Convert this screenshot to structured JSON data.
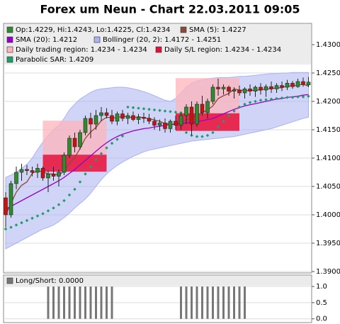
{
  "chart_data": {
    "type": "candlestick",
    "title": "Forex um Neun - Chart 22.03.2011 09:05",
    "ylim": [
      1.38975,
      1.43375
    ],
    "yticks": [
      {
        "value": 1.43,
        "label": "1.4300"
      },
      {
        "value": 1.425,
        "label": "1.4250"
      },
      {
        "value": 1.42,
        "label": "1.4200"
      },
      {
        "value": 1.415,
        "label": "1.4150"
      },
      {
        "value": 1.41,
        "label": "1.4100"
      },
      {
        "value": 1.405,
        "label": "1.4050"
      },
      {
        "value": 1.4,
        "label": "1.4000"
      },
      {
        "value": 1.395,
        "label": "1.3950"
      },
      {
        "value": 1.39,
        "label": "1.3900"
      }
    ],
    "grid": true,
    "candles": {
      "name": "Op:1.4229, Hi:1.4243, Lo:1.4225, Cl:1.4234",
      "color": "#2e8b2e",
      "down_color": "#d01010",
      "open": [
        1.403,
        1.4,
        1.4055,
        1.4075,
        1.408,
        1.4078,
        1.4075,
        1.4082,
        1.4065,
        1.4072,
        1.4068,
        1.4075,
        1.4105,
        1.4135,
        1.412,
        1.4145,
        1.417,
        1.416,
        1.4175,
        1.418,
        1.4175,
        1.4165,
        1.4178,
        1.417,
        1.4175,
        1.4168,
        1.4172,
        1.417,
        1.4165,
        1.4158,
        1.4162,
        1.4152,
        1.4165,
        1.4158,
        1.4175,
        1.419,
        1.416,
        1.4195,
        1.418,
        1.42,
        1.4225,
        1.4222,
        1.4225,
        1.4218,
        1.422,
        1.4215,
        1.4222,
        1.4218,
        1.4225,
        1.422,
        1.4226,
        1.4222,
        1.4228,
        1.4225,
        1.4232,
        1.4226,
        1.4235,
        1.4229
      ],
      "high": [
        1.404,
        1.406,
        1.4085,
        1.409,
        1.4088,
        1.4085,
        1.409,
        1.4085,
        1.4078,
        1.4085,
        1.408,
        1.411,
        1.414,
        1.4145,
        1.415,
        1.4175,
        1.418,
        1.4185,
        1.419,
        1.4188,
        1.4185,
        1.4182,
        1.4185,
        1.418,
        1.4182,
        1.4178,
        1.418,
        1.4178,
        1.4172,
        1.4168,
        1.417,
        1.4168,
        1.4175,
        1.418,
        1.4195,
        1.42,
        1.42,
        1.421,
        1.4205,
        1.423,
        1.424,
        1.423,
        1.4228,
        1.4225,
        1.4228,
        1.4225,
        1.423,
        1.4228,
        1.4232,
        1.423,
        1.4235,
        1.4232,
        1.4235,
        1.4238,
        1.4236,
        1.424,
        1.4242,
        1.4243
      ],
      "low": [
        1.3978,
        1.3995,
        1.4045,
        1.406,
        1.407,
        1.4068,
        1.4065,
        1.406,
        1.404,
        1.406,
        1.405,
        1.407,
        1.41,
        1.411,
        1.4115,
        1.414,
        1.4135,
        1.415,
        1.4165,
        1.417,
        1.416,
        1.4158,
        1.4165,
        1.416,
        1.4165,
        1.416,
        1.4162,
        1.416,
        1.415,
        1.4148,
        1.4145,
        1.4145,
        1.415,
        1.415,
        1.416,
        1.414,
        1.4155,
        1.4175,
        1.417,
        1.4195,
        1.421,
        1.4212,
        1.421,
        1.4205,
        1.421,
        1.4205,
        1.421,
        1.4208,
        1.4212,
        1.4208,
        1.4215,
        1.4215,
        1.4218,
        1.422,
        1.4222,
        1.4224,
        1.4226,
        1.4225
      ],
      "close": [
        1.4,
        1.4055,
        1.4075,
        1.408,
        1.4078,
        1.4075,
        1.4082,
        1.4065,
        1.4072,
        1.4068,
        1.4075,
        1.4105,
        1.4135,
        1.412,
        1.4145,
        1.417,
        1.416,
        1.4175,
        1.418,
        1.4175,
        1.4165,
        1.4178,
        1.417,
        1.4175,
        1.4168,
        1.4172,
        1.417,
        1.4165,
        1.4158,
        1.4162,
        1.4152,
        1.4165,
        1.4158,
        1.4175,
        1.419,
        1.416,
        1.4195,
        1.418,
        1.42,
        1.4225,
        1.4222,
        1.4225,
        1.4218,
        1.422,
        1.4215,
        1.4222,
        1.4218,
        1.4225,
        1.422,
        1.4226,
        1.4222,
        1.4228,
        1.4225,
        1.4232,
        1.4226,
        1.4235,
        1.423,
        1.4234
      ]
    },
    "series": [
      {
        "name": "SMA (5): 1.4227",
        "color": "#8b4a3a",
        "style": "line",
        "values": [
          1.4,
          1.402,
          1.404,
          1.4052,
          1.4058,
          1.4073,
          1.4078,
          1.4076,
          1.4072,
          1.4072,
          1.407,
          1.4077,
          1.4091,
          1.4101,
          1.4117,
          1.4135,
          1.4146,
          1.4154,
          1.4166,
          1.4172,
          1.4171,
          1.4171,
          1.4174,
          1.4173,
          1.4171,
          1.4173,
          1.4171,
          1.417,
          1.4167,
          1.4165,
          1.4161,
          1.416,
          1.4159,
          1.4162,
          1.4168,
          1.417,
          1.4176,
          1.418,
          1.4185,
          1.4192,
          1.4205,
          1.421,
          1.4214,
          1.4222,
          1.422,
          1.4219,
          1.4219,
          1.422,
          1.422,
          1.4222,
          1.4222,
          1.4224,
          1.4224,
          1.4227,
          1.4227,
          1.4229,
          1.423,
          1.4227
        ]
      },
      {
        "name": "SMA (20): 1.4212",
        "color": "#9900cc",
        "style": "line",
        "values": [
          1.401,
          1.4015,
          1.402,
          1.4025,
          1.403,
          1.4035,
          1.404,
          1.4045,
          1.405,
          1.4055,
          1.406,
          1.4066,
          1.4073,
          1.408,
          1.4088,
          1.4096,
          1.4104,
          1.4112,
          1.412,
          1.4127,
          1.4133,
          1.4138,
          1.4142,
          1.4145,
          1.4148,
          1.415,
          1.4152,
          1.4153,
          1.4155,
          1.4156,
          1.4158,
          1.4159,
          1.416,
          1.4161,
          1.4162,
          1.4163,
          1.4164,
          1.4166,
          1.4168,
          1.417,
          1.4174,
          1.4178,
          1.4182,
          1.4186,
          1.4189,
          1.4192,
          1.4194,
          1.4196,
          1.4198,
          1.42,
          1.4202,
          1.4204,
          1.4205,
          1.4207,
          1.4208,
          1.4209,
          1.4211,
          1.4212
        ]
      },
      {
        "name": "Parabolic SAR: 1.4209",
        "color": "#1f9d6a",
        "style": "dots",
        "values": [
          1.3975,
          1.3978,
          1.3982,
          1.3986,
          1.399,
          1.3994,
          1.3998,
          1.4002,
          1.4007,
          1.4012,
          1.4018,
          1.4025,
          1.4035,
          1.4045,
          1.4058,
          1.4072,
          1.4085,
          1.4097,
          1.4108,
          1.4118,
          1.4126,
          1.4133,
          1.4139,
          1.419,
          1.4189,
          1.4188,
          1.4187,
          1.4186,
          1.4185,
          1.4184,
          1.4183,
          1.4182,
          1.4181,
          1.418,
          1.4145,
          1.414,
          1.4138,
          1.4138,
          1.414,
          1.4145,
          1.4155,
          1.4165,
          1.4175,
          1.4183,
          1.419,
          1.4195,
          1.4198,
          1.42,
          1.4202,
          1.4203,
          1.4204,
          1.4205,
          1.4206,
          1.4207,
          1.4207,
          1.4208,
          1.4208,
          1.4209
        ]
      }
    ],
    "bollinger": {
      "name": "Bollinger (20, 2): 1.4172 - 1.4251",
      "color": "#aab2f2",
      "upper": [
        1.4066,
        1.407,
        1.4075,
        1.4082,
        1.4089,
        1.41,
        1.4115,
        1.4128,
        1.414,
        1.415,
        1.4158,
        1.417,
        1.4185,
        1.4195,
        1.4204,
        1.421,
        1.4216,
        1.422,
        1.4222,
        1.4223,
        1.4224,
        1.4225,
        1.4225,
        1.4224,
        1.4222,
        1.422,
        1.4217,
        1.4214,
        1.421,
        1.4206,
        1.4202,
        1.42,
        1.4205,
        1.4215,
        1.4225,
        1.4232,
        1.4236,
        1.4238,
        1.424,
        1.4241,
        1.4242,
        1.4242,
        1.4242,
        1.4243,
        1.4244,
        1.4244,
        1.4245,
        1.4246,
        1.4247,
        1.4248,
        1.4249,
        1.4249,
        1.425,
        1.425,
        1.4251,
        1.4251,
        1.4251,
        1.4251
      ],
      "lower": [
        1.394,
        1.3945,
        1.395,
        1.3955,
        1.396,
        1.3965,
        1.397,
        1.3975,
        1.3978,
        1.3982,
        1.3988,
        1.3995,
        1.4003,
        1.4012,
        1.402,
        1.4028,
        1.4038,
        1.405,
        1.4062,
        1.4072,
        1.408,
        1.4087,
        1.4093,
        1.4098,
        1.4103,
        1.4107,
        1.4111,
        1.4114,
        1.4116,
        1.4118,
        1.412,
        1.4122,
        1.4124,
        1.4126,
        1.4128,
        1.413,
        1.4131,
        1.4132,
        1.4133,
        1.4134,
        1.4135,
        1.4136,
        1.4137,
        1.4138,
        1.414,
        1.4142,
        1.4144,
        1.4146,
        1.4148,
        1.415,
        1.4152,
        1.4155,
        1.4158,
        1.4161,
        1.4164,
        1.4167,
        1.417,
        1.4172
      ]
    },
    "regions": {
      "trading_name": "Daily trading region: 1.4234 - 1.4234",
      "trading_color": "#ffb3bb",
      "sl_name": "Daily S/L region: 1.4234 - 1.4234",
      "sl_color": "#e3103d",
      "items": [
        {
          "start": 7,
          "end": 19,
          "trading": [
            1.4166,
            1.4085
          ],
          "sl": [
            1.4106,
            1.4076
          ]
        },
        {
          "start": 32,
          "end": 44,
          "trading": [
            1.4241,
            1.4148
          ],
          "sl": [
            1.4179,
            1.4148
          ]
        }
      ]
    },
    "indicator": {
      "type": "bar",
      "name": "Long/Short: 0.0000",
      "color": "#777777",
      "ylim": [
        -0.05,
        1.2
      ],
      "yticks": [
        {
          "value": 1,
          "label": "1.0"
        },
        0.5,
        {
          "value": 0,
          "label": "0.0"
        }
      ],
      "values": [
        0,
        0,
        0,
        0,
        0,
        0,
        0,
        0,
        1,
        1,
        1,
        1,
        1,
        1,
        1,
        1,
        1,
        1,
        1,
        1,
        1,
        0,
        0,
        0,
        0,
        0,
        0,
        0,
        0,
        0,
        0,
        0,
        0,
        1,
        1,
        1,
        1,
        1,
        1,
        1,
        1,
        1,
        1,
        1,
        1,
        1,
        0,
        0,
        0,
        0,
        0,
        0,
        0,
        0,
        0,
        0,
        0,
        0
      ]
    }
  }
}
